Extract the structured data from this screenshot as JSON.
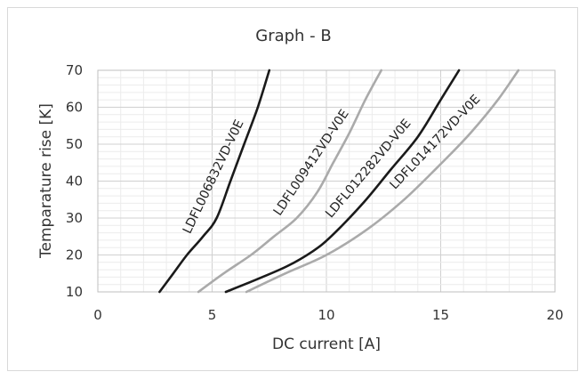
{
  "chart_data": {
    "type": "line",
    "title": "Graph - B",
    "xlabel": "DC current [A]",
    "ylabel": "Temparature rise [K]",
    "xlim": [
      0,
      20
    ],
    "ylim": [
      10,
      70
    ],
    "xticks": [
      0,
      5,
      10,
      15,
      20
    ],
    "yticks": [
      10,
      20,
      30,
      40,
      50,
      60,
      70
    ],
    "grid": true,
    "legend": "none",
    "series": [
      {
        "name": "LDFL006832VD-V0E",
        "color": "#1a1a1a",
        "x": [
          2.7,
          3.3,
          3.9,
          4.6,
          5.2,
          5.8,
          6.4,
          7.0,
          7.5
        ],
        "y": [
          10,
          15,
          20,
          25,
          30,
          40,
          50,
          60,
          70
        ]
      },
      {
        "name": "LDFL009412VD-V0E",
        "color": "#aaaaaa",
        "x": [
          4.4,
          5.5,
          6.7,
          7.7,
          8.7,
          9.6,
          10.3,
          11.0,
          11.7,
          12.4
        ],
        "y": [
          10,
          15,
          20,
          25,
          30,
          37,
          45,
          53,
          62,
          70
        ]
      },
      {
        "name": "LDFL012282VD-V0E",
        "color": "#1a1a1a",
        "x": [
          5.6,
          6.8,
          8.3,
          9.4,
          10.2,
          11.6,
          12.8,
          14.0,
          15.0,
          15.8
        ],
        "y": [
          10,
          13,
          17,
          21,
          25,
          34,
          43,
          52,
          62,
          70
        ]
      },
      {
        "name": "LDFL014172VD-V0E",
        "color": "#aaaaaa",
        "x": [
          6.5,
          8.2,
          10.0,
          11.8,
          13.4,
          14.9,
          16.3,
          17.5,
          18.4
        ],
        "y": [
          10,
          15,
          20,
          27,
          35,
          44,
          53,
          62,
          70
        ]
      }
    ]
  }
}
